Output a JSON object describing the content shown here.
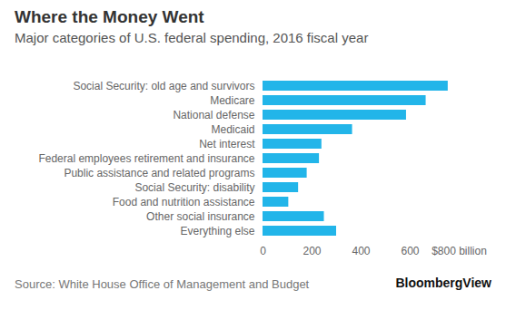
{
  "chart_data": {
    "type": "bar",
    "orientation": "horizontal",
    "title": "Where the Money Went",
    "subtitle": "Major categories of U.S. federal spending, 2016 fiscal year",
    "source": "Source: White House Office of Management and Budget",
    "brand": "BloombergView",
    "categories": [
      "Social Security: old age and survivors",
      "Medicare",
      "National defense",
      "Medicaid",
      "Net interest",
      "Federal employees retirement and insurance",
      "Public assistance and related programs",
      "Social Security: disability",
      "Food and nutrition assistance",
      "Other social insurance",
      "Everything else"
    ],
    "values": [
      755,
      665,
      585,
      365,
      240,
      230,
      180,
      145,
      105,
      250,
      300
    ],
    "color": "#22b5e9",
    "xlim": [
      0,
      800
    ],
    "xticks": [
      0,
      200,
      400,
      600,
      {
        "value": 800,
        "label": "$800 billion"
      }
    ],
    "grid": false
  }
}
